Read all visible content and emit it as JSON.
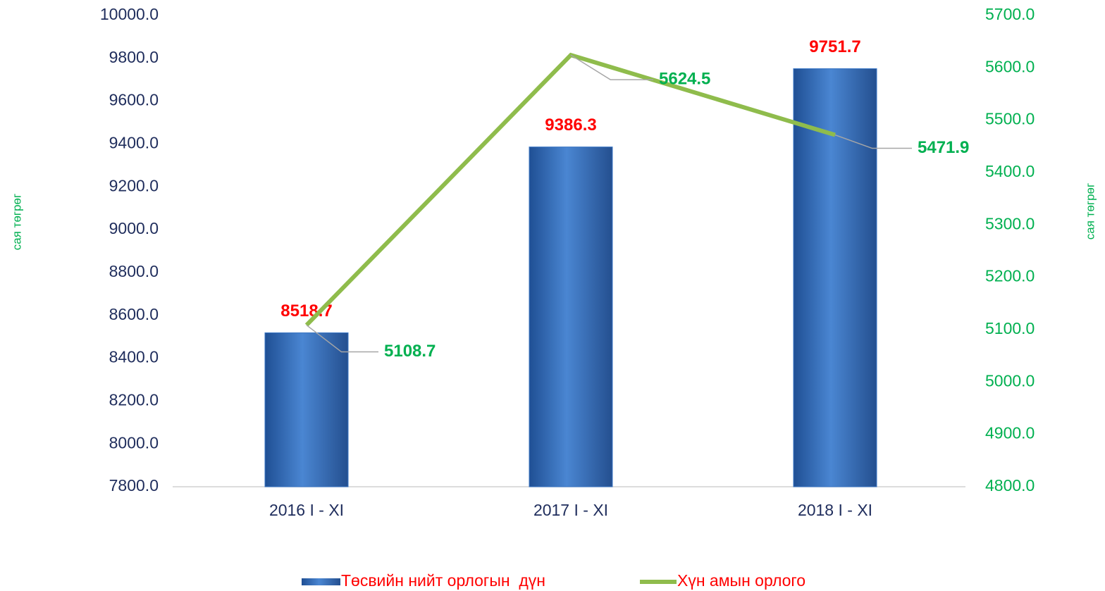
{
  "chart_data": {
    "type": "bar_line",
    "categories": [
      "2016 I - XI",
      "2017 I - XI",
      "2018 I - XI"
    ],
    "series": [
      {
        "name": "Төсвийн нийт орлогын  дүн",
        "type": "bar",
        "axis": "y",
        "color": "#3a76c4",
        "values": [
          8518.7,
          9386.3,
          9751.7
        ]
      },
      {
        "name": "Хүн амын орлого",
        "type": "line",
        "axis": "y2",
        "color": "#8fbc4c",
        "values": [
          5108.7,
          5624.5,
          5471.9
        ]
      }
    ],
    "ylabel": "сая төгрөг",
    "y2label": "сая төгрөг",
    "ylim": [
      7800,
      10000
    ],
    "yticks": [
      {
        "value": 7800,
        "label": "7800.0"
      },
      {
        "value": 8000,
        "label": "8000.0"
      },
      {
        "value": 8200,
        "label": "8200.0"
      },
      {
        "value": 8400,
        "label": "8400.0"
      },
      {
        "value": 8600,
        "label": "8600.0"
      },
      {
        "value": 8800,
        "label": "8800.0"
      },
      {
        "value": 9000,
        "label": "9000.0"
      },
      {
        "value": 9200,
        "label": "9200.0"
      },
      {
        "value": 9400,
        "label": "9400.0"
      },
      {
        "value": 9600,
        "label": "9600.0"
      },
      {
        "value": 9800,
        "label": "9800.0"
      },
      {
        "value": 10000,
        "label": "10000.0"
      }
    ],
    "y2lim": [
      4800,
      5700
    ],
    "y2ticks": [
      {
        "value": 4800,
        "label": "4800.0"
      },
      {
        "value": 4900,
        "label": "4900.0"
      },
      {
        "value": 5000,
        "label": "5000.0"
      },
      {
        "value": 5100,
        "label": "5100.0"
      },
      {
        "value": 5200,
        "label": "5200.0"
      },
      {
        "value": 5300,
        "label": "5300.0"
      },
      {
        "value": 5400,
        "label": "5400.0"
      },
      {
        "value": 5500,
        "label": "5500.0"
      },
      {
        "value": 5600,
        "label": "5600.0"
      },
      {
        "value": 5700,
        "label": "5700.0"
      }
    ],
    "legend": "bottom",
    "grid": false
  }
}
